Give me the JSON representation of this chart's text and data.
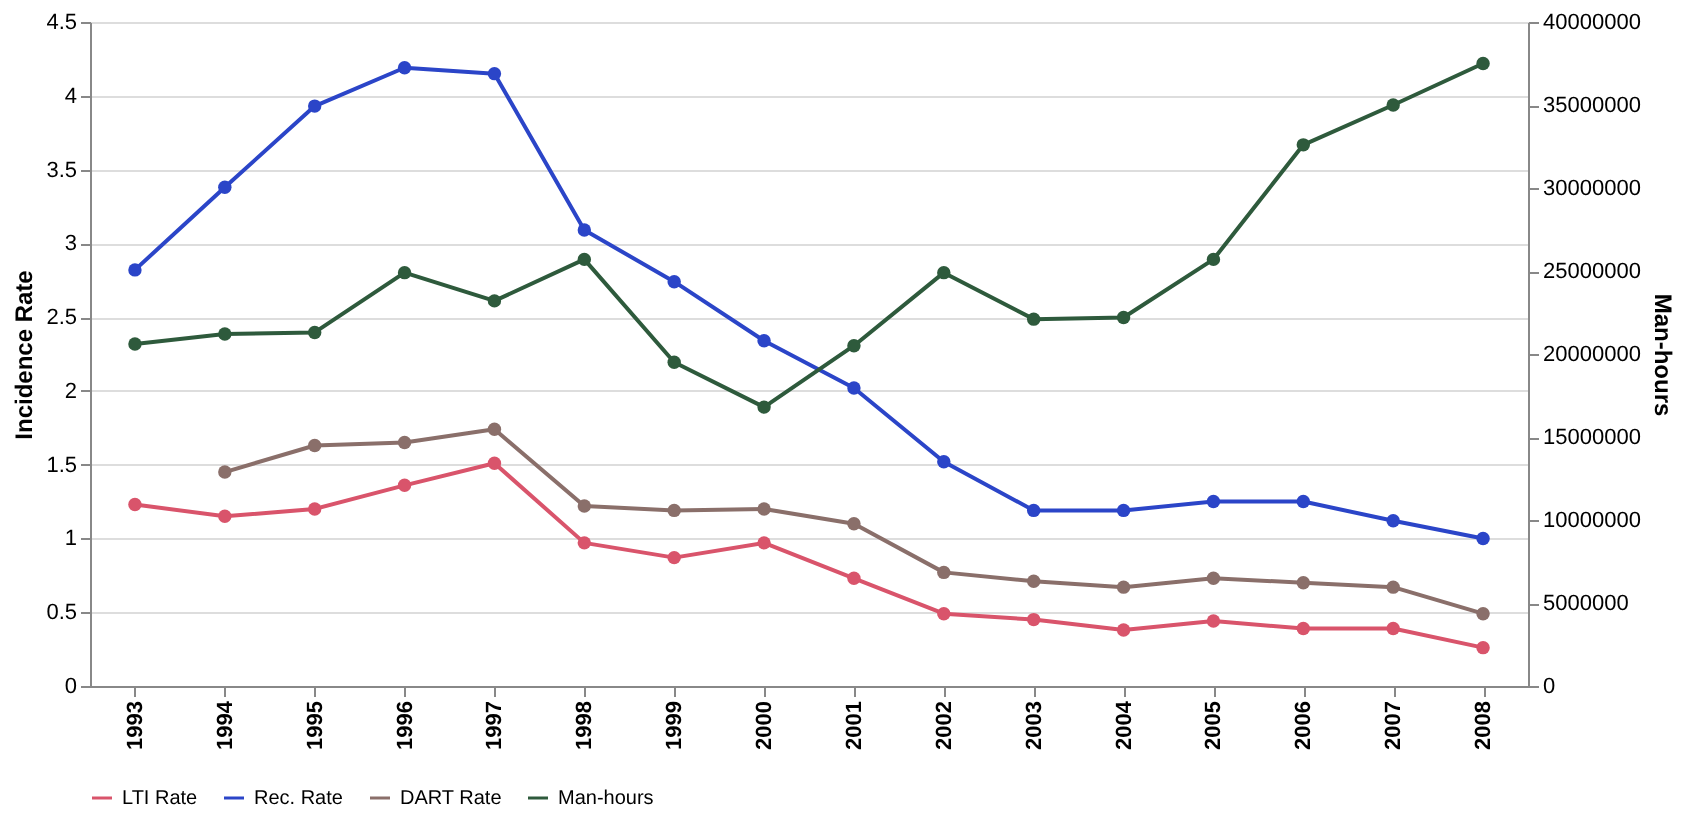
{
  "chart_data": {
    "type": "line",
    "ylabel": "Incidence Rate",
    "y2label": "Man-hours",
    "categories": [
      "1993",
      "1994",
      "1995",
      "1996",
      "1997",
      "1998",
      "1999",
      "2000",
      "2001",
      "2002",
      "2003",
      "2004",
      "2005",
      "2006",
      "2007",
      "2008"
    ],
    "series": [
      {
        "name": "LTI Rate",
        "color": "#d9546b",
        "values": [
          1.23,
          1.15,
          1.2,
          1.36,
          1.51,
          0.97,
          0.87,
          0.97,
          0.73,
          0.49,
          0.45,
          0.38,
          0.44,
          0.39,
          0.39,
          0.26
        ]
      },
      {
        "name": "Rec. Rate",
        "color": "#2b45c8",
        "values": [
          2.82,
          3.38,
          3.93,
          4.19,
          4.15,
          3.09,
          2.74,
          2.34,
          2.02,
          1.52,
          1.19,
          1.19,
          1.25,
          1.25,
          1.12,
          1.0
        ]
      },
      {
        "name": "DART Rate",
        "color": "#8a6f6a",
        "values": [
          null,
          1.45,
          1.63,
          1.65,
          1.74,
          1.22,
          1.19,
          1.2,
          1.1,
          0.77,
          0.71,
          0.67,
          0.73,
          0.7,
          0.67,
          0.49
        ]
      },
      {
        "name": "Man-hours",
        "color": "#2e5a3c",
        "axis": "y2",
        "values": [
          20600000,
          21200000,
          21300000,
          24900000,
          23200000,
          25700000,
          19500000,
          16800000,
          20500000,
          24900000,
          22100000,
          22200000,
          25700000,
          32600000,
          35000000,
          37500000
        ]
      }
    ],
    "ylim": [
      0,
      4.5
    ],
    "yticks": [
      0,
      0.5,
      1,
      1.5,
      2,
      2.5,
      3,
      3.5,
      4,
      4.5
    ],
    "y2lim": [
      0,
      40000000
    ],
    "y2ticks": [
      0,
      5000000,
      10000000,
      15000000,
      20000000,
      25000000,
      30000000,
      35000000,
      40000000
    ],
    "grid": "y",
    "legend": "bottom",
    "marker": "circle",
    "line_style": "solid"
  }
}
